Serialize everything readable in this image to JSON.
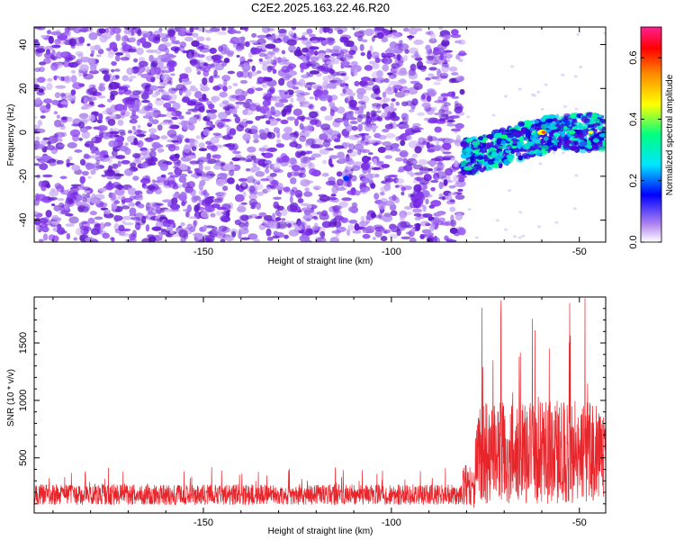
{
  "title": "C2E2.2025.163.22.46.R20",
  "colors": {
    "snr_line": "#e8252b",
    "speckle": "#7b2ee6",
    "speckle_light": "#c9a8f5",
    "axis": "#000000"
  },
  "chart_data": [
    {
      "type": "heatmap",
      "xlabel": "Height of straight line (km)",
      "ylabel": "Frequency (Hz)",
      "xlim": [
        -195,
        -43
      ],
      "ylim": [
        -50,
        48
      ],
      "x_ticks": [
        -150,
        -100,
        -50
      ],
      "x_tick_labels": [
        "-150",
        "-100",
        "-50"
      ],
      "y_ticks": [
        -40,
        -20,
        0,
        20,
        40
      ],
      "y_tick_labels": [
        "-40",
        "-20",
        "0",
        "20",
        "40"
      ],
      "noise_region": {
        "x": [
          -195,
          -81
        ],
        "y": [
          -50,
          48
        ],
        "amplitude": 0.15
      },
      "signal_band": {
        "x": [
          -81,
          -43
        ],
        "center_hz": [
          -12,
          0
        ],
        "width_hz": 8,
        "peak_amplitude": 0.65,
        "peak_at": -60
      },
      "colorbar": {
        "label": "Normalized spectral amplitude",
        "range": [
          0.0,
          0.7
        ],
        "ticks": [
          0.0,
          0.2,
          0.4,
          0.6
        ],
        "tick_labels": [
          "0.0",
          "0.2",
          "0.4",
          "0.6"
        ]
      },
      "grid": false
    },
    {
      "type": "line",
      "xlabel": "Height of straight line (km)",
      "ylabel": "SNR (10 * v/v)",
      "xlim": [
        -195,
        -43
      ],
      "ylim": [
        20,
        1900
      ],
      "x_ticks": [
        -150,
        -100,
        -50
      ],
      "x_tick_labels": [
        "-150",
        "-100",
        "-50"
      ],
      "y_ticks": [
        500,
        1000,
        1500
      ],
      "y_tick_labels": [
        "500",
        "1000",
        "1500"
      ],
      "series": [
        {
          "segments": [
            {
              "x": [
                -195,
                -81
              ],
              "mean": 180,
              "spread": 90,
              "max": 420
            },
            {
              "x": [
                -81,
                -78
              ],
              "mean": 260,
              "spread": 200,
              "max": 500
            },
            {
              "x": [
                -78,
                -43
              ],
              "mean": 550,
              "spread": 450,
              "max": 1900
            }
          ],
          "peaks": [
            {
              "x": -48.5,
              "y": 1890
            },
            {
              "x": -62.5,
              "y": 1710
            },
            {
              "x": -73,
              "y": 1350
            },
            {
              "x": -58,
              "y": 1450
            },
            {
              "x": -66,
              "y": 1380
            }
          ]
        }
      ],
      "grid": false
    }
  ]
}
